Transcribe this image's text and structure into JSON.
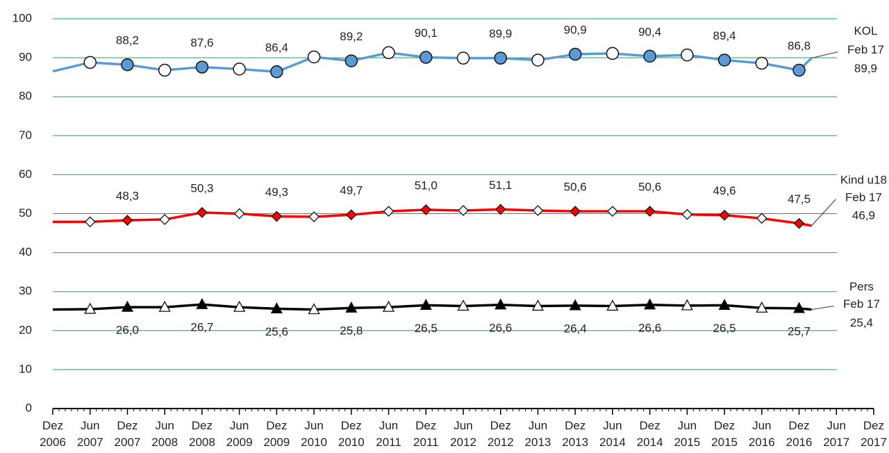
{
  "chart_data": {
    "type": "line",
    "x": [
      "2006-12",
      "2007-06",
      "2007-12",
      "2008-06",
      "2008-12",
      "2009-06",
      "2009-12",
      "2010-06",
      "2010-12",
      "2011-06",
      "2011-12",
      "2012-06",
      "2012-12",
      "2013-06",
      "2013-12",
      "2014-06",
      "2014-12",
      "2015-06",
      "2015-12",
      "2016-06",
      "2016-12",
      "2017-02"
    ],
    "series": [
      {
        "name": "KOL",
        "color": "#5b9bd5",
        "end_label": "Feb 17",
        "values": [
          86.5,
          88.8,
          88.2,
          86.8,
          87.6,
          87.1,
          86.4,
          90.2,
          89.2,
          91.3,
          90.1,
          89.9,
          89.9,
          89.4,
          90.9,
          91.1,
          90.4,
          90.7,
          89.4,
          88.6,
          86.8,
          89.9
        ],
        "value_labels": [
          null,
          null,
          "88,2",
          null,
          "87,6",
          null,
          "86,4",
          null,
          "89,2",
          null,
          "90,1",
          null,
          "89,9",
          null,
          "90,9",
          null,
          "90,4",
          null,
          "89,4",
          null,
          "86,8",
          "89,9"
        ]
      },
      {
        "name": "Kind u18",
        "color": "#ff0000",
        "end_label": "Feb 17",
        "values": [
          47.9,
          47.9,
          48.3,
          48.5,
          50.3,
          50.0,
          49.3,
          49.2,
          49.7,
          50.6,
          51.0,
          50.8,
          51.1,
          50.8,
          50.6,
          50.6,
          50.6,
          49.8,
          49.6,
          48.8,
          47.5,
          46.9
        ],
        "value_labels": [
          null,
          null,
          "48,3",
          null,
          "50,3",
          null,
          "49,3",
          null,
          "49,7",
          null,
          "51,0",
          null,
          "51,1",
          null,
          "50,6",
          null,
          "50,6",
          null,
          "49,6",
          null,
          "47,5",
          "46,9"
        ]
      },
      {
        "name": "Pers",
        "color": "#000000",
        "end_label": "Feb 17",
        "values": [
          25.4,
          25.5,
          26.0,
          26.0,
          26.7,
          26.0,
          25.6,
          25.4,
          25.8,
          26.0,
          26.5,
          26.3,
          26.6,
          26.3,
          26.4,
          26.3,
          26.6,
          26.4,
          26.5,
          25.8,
          25.7,
          25.4
        ],
        "value_labels": [
          null,
          null,
          "26,0",
          null,
          "26,7",
          null,
          "25,6",
          null,
          "25,8",
          null,
          "26,5",
          null,
          "26,6",
          null,
          "26,4",
          null,
          "26,6",
          null,
          "26,5",
          null,
          "25,7",
          "25,4"
        ]
      }
    ],
    "ylim": [
      0,
      100
    ],
    "yticks": [
      0,
      10,
      20,
      30,
      40,
      50,
      60,
      70,
      80,
      90,
      100
    ],
    "grid": true,
    "grid_color": "#00b050",
    "xlim": [
      "2006-12",
      "2017-12"
    ],
    "xticks": [
      {
        "value": "2006-12",
        "label": "Dez 2006"
      },
      {
        "value": "2007-06",
        "label": "Jun 2007"
      },
      {
        "value": "2007-12",
        "label": "Dez 2007"
      },
      {
        "value": "2008-06",
        "label": "Jun 2008"
      },
      {
        "value": "2008-12",
        "label": "Dez 2008"
      },
      {
        "value": "2009-06",
        "label": "Jun 2009"
      },
      {
        "value": "2009-12",
        "label": "Dez 2009"
      },
      {
        "value": "2010-06",
        "label": "Jun 2010"
      },
      {
        "value": "2010-12",
        "label": "Dez 2010"
      },
      {
        "value": "2011-06",
        "label": "Jun 2011"
      },
      {
        "value": "2011-12",
        "label": "Dez 2011"
      },
      {
        "value": "2012-06",
        "label": "Jun 2012"
      },
      {
        "value": "2012-12",
        "label": "Dez 2012"
      },
      {
        "value": "2013-06",
        "label": "Jun 2013"
      },
      {
        "value": "2013-12",
        "label": "Dez 2013"
      },
      {
        "value": "2014-06",
        "label": "Jun 2014"
      },
      {
        "value": "2014-12",
        "label": "Dez 2014"
      },
      {
        "value": "2015-06",
        "label": "Jun 2015"
      },
      {
        "value": "2015-12",
        "label": "Dez 2015"
      },
      {
        "value": "2016-06",
        "label": "Jun 2016"
      },
      {
        "value": "2016-12",
        "label": "Dez 2016"
      },
      {
        "value": "2017-06",
        "label": "Jun 2017"
      },
      {
        "value": "2017-12",
        "label": "Dez 2017"
      }
    ]
  }
}
